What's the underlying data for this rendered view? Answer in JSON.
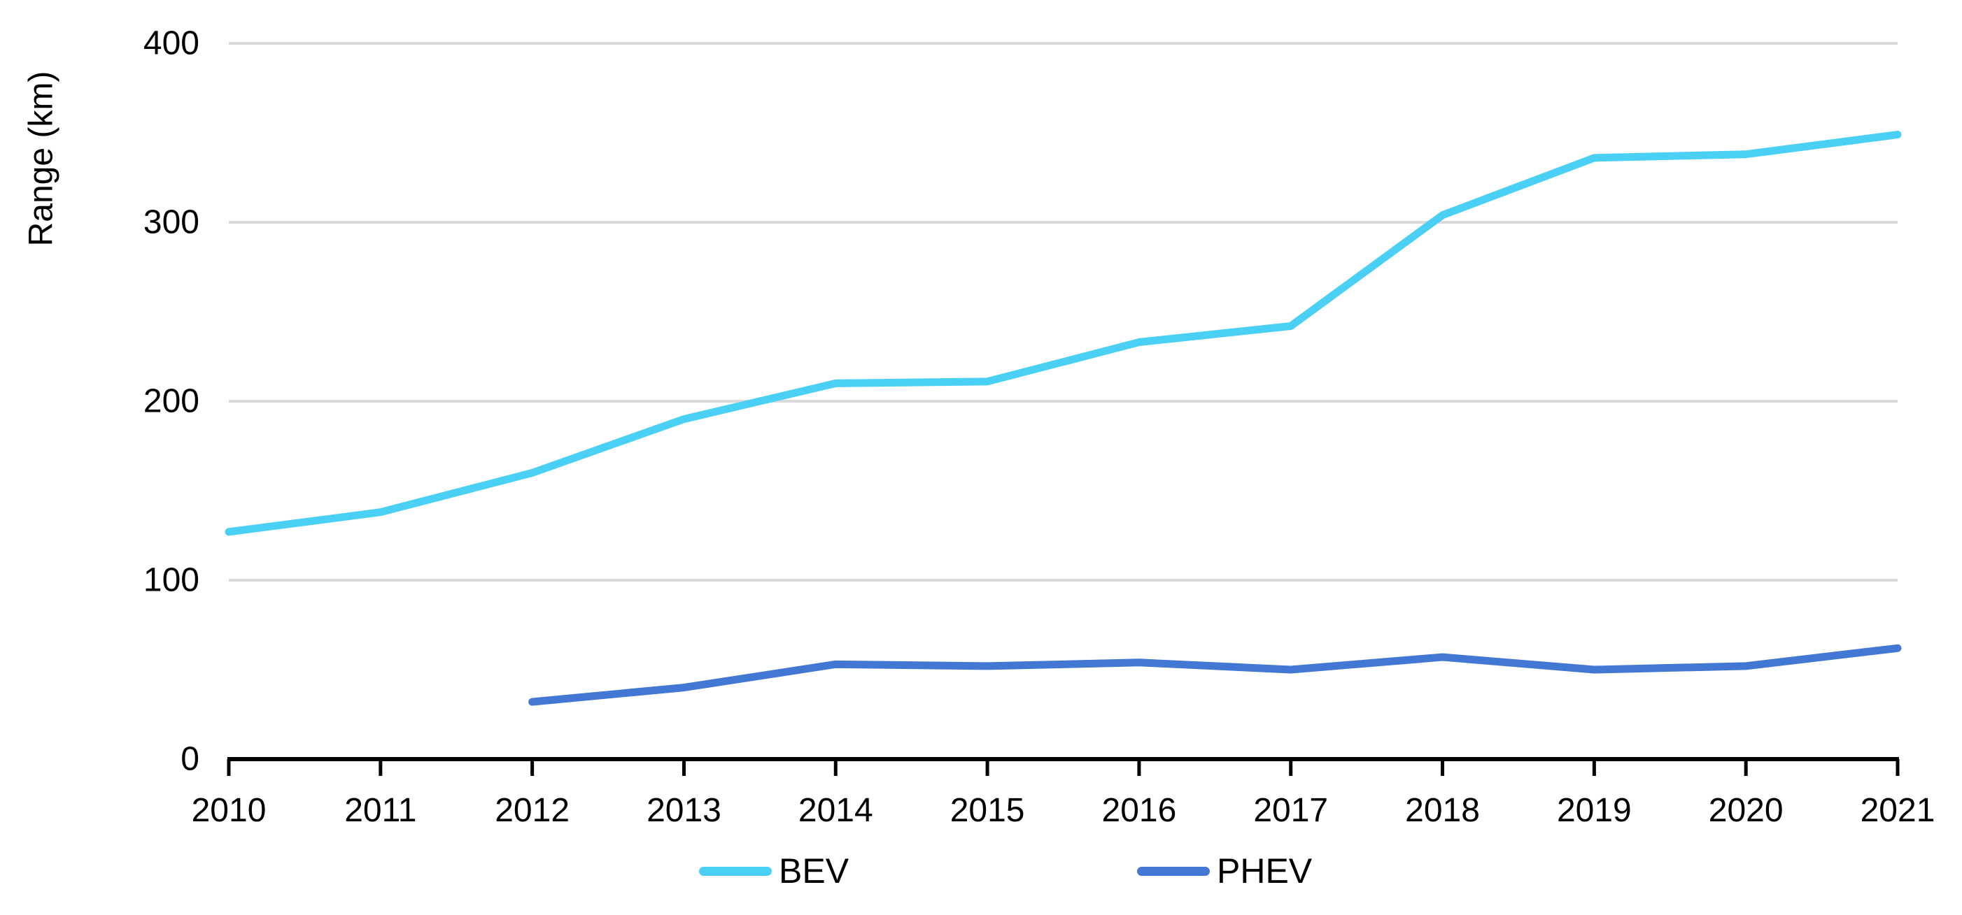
{
  "chart_data": {
    "type": "line",
    "title": "",
    "xlabel": "",
    "ylabel": "Range (km)",
    "x": [
      2010,
      2011,
      2012,
      2013,
      2014,
      2015,
      2016,
      2017,
      2018,
      2019,
      2020,
      2021
    ],
    "xtick_labels": [
      "2010",
      "2011",
      "2012",
      "2013",
      "2014",
      "2015",
      "2016",
      "2017",
      "2018",
      "2019",
      "2020",
      "2021"
    ],
    "yticks": [
      0,
      100,
      200,
      300,
      400
    ],
    "ytick_labels": [
      "0",
      "100",
      "200",
      "300",
      "400"
    ],
    "ylim": [
      0,
      400
    ],
    "grid": "horizontal",
    "legend_position": "bottom",
    "series": [
      {
        "name": "BEV",
        "color": "#4ad0f4",
        "x": [
          2010,
          2011,
          2012,
          2013,
          2014,
          2015,
          2016,
          2017,
          2018,
          2019,
          2020,
          2021
        ],
        "values": [
          127,
          138,
          160,
          190,
          210,
          211,
          233,
          242,
          304,
          336,
          338,
          349
        ]
      },
      {
        "name": "PHEV",
        "color": "#4277d4",
        "x": [
          2012,
          2013,
          2014,
          2015,
          2016,
          2017,
          2018,
          2019,
          2020,
          2021
        ],
        "values": [
          32,
          40,
          53,
          52,
          54,
          50,
          57,
          50,
          52,
          62
        ]
      }
    ],
    "style": {
      "gridline_color": "#d9d9d9",
      "axis_color": "#000000",
      "line_width": 11
    }
  },
  "legend": {
    "bev_label": "BEV",
    "phev_label": "PHEV"
  }
}
